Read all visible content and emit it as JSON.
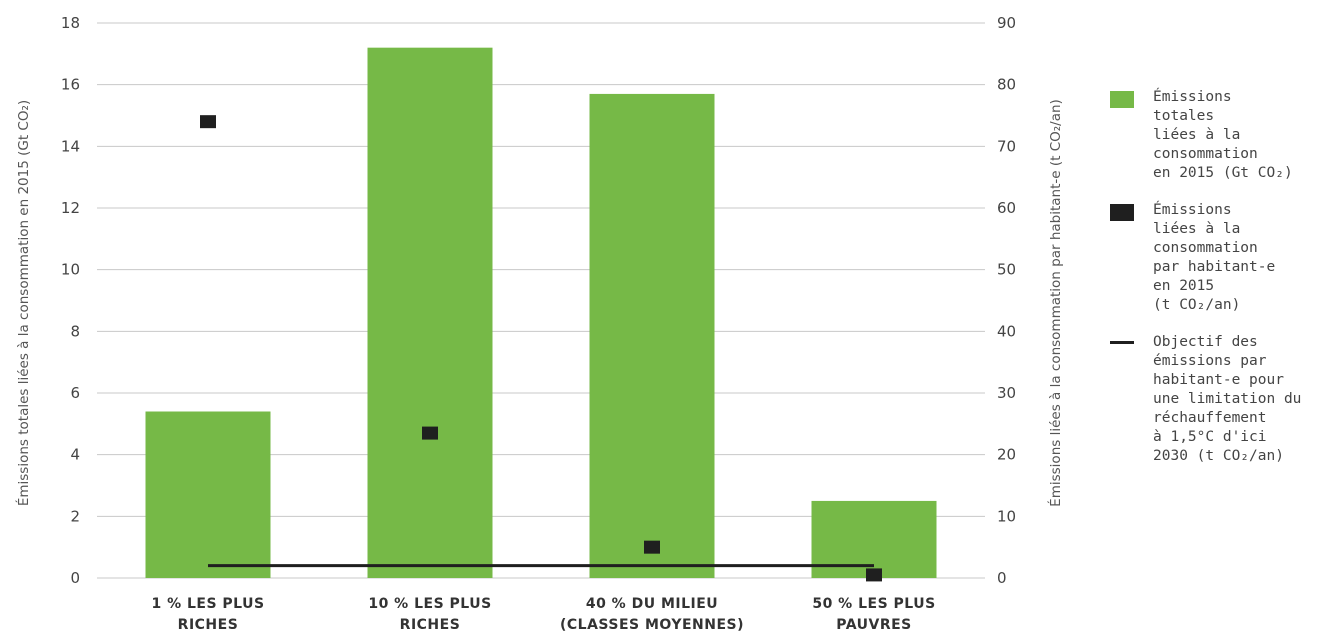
{
  "chart_data": {
    "type": "bar",
    "categories": [
      [
        "1 % LES PLUS",
        "RICHES"
      ],
      [
        "10 % LES PLUS",
        "RICHES"
      ],
      [
        "40 % DU MILIEU",
        "(CLASSES MOYENNES)"
      ],
      [
        "50 % LES PLUS",
        "PAUVRES"
      ]
    ],
    "series": [
      {
        "name": "Émissions\ntotales\nliées à la\nconsommation\nen 2015 (Gt CO₂)",
        "type": "bar",
        "axis": "left",
        "color": "#76b947",
        "values": [
          5.4,
          17.2,
          15.7,
          2.5
        ]
      },
      {
        "name": "Émissions\nliées à la\nconsommation\npar habitant-e\nen 2015\n(t CO₂/an)",
        "type": "scatter",
        "axis": "right",
        "color": "#1f1f1f",
        "values": [
          74,
          23.5,
          5,
          0.5
        ]
      },
      {
        "name": "Objectif des\némissions par\nhabitant-e pour\nune limitation du\nréchauffement\nà 1,5°C d'ici\n2030 (t CO₂/an)",
        "type": "line",
        "axis": "right",
        "color": "#1f1f1f",
        "values": [
          2,
          2,
          2,
          2
        ]
      }
    ],
    "ylabel_left": "Émissions totales liées à la consommation en 2015 (Gt CO₂)",
    "ylabel_right": "Émissions liées à la consommation par habitant-e (t CO₂/an)",
    "ylim_left": [
      0,
      18
    ],
    "ylim_right": [
      0,
      90
    ],
    "yticks_left": [
      "0",
      "2",
      "4",
      "6",
      "8",
      "10",
      "12",
      "14",
      "16",
      "18"
    ],
    "yticks_right": [
      "0",
      "10",
      "20",
      "30",
      "40",
      "50",
      "60",
      "70",
      "80",
      "90"
    ],
    "grid": true,
    "legend": "right"
  }
}
